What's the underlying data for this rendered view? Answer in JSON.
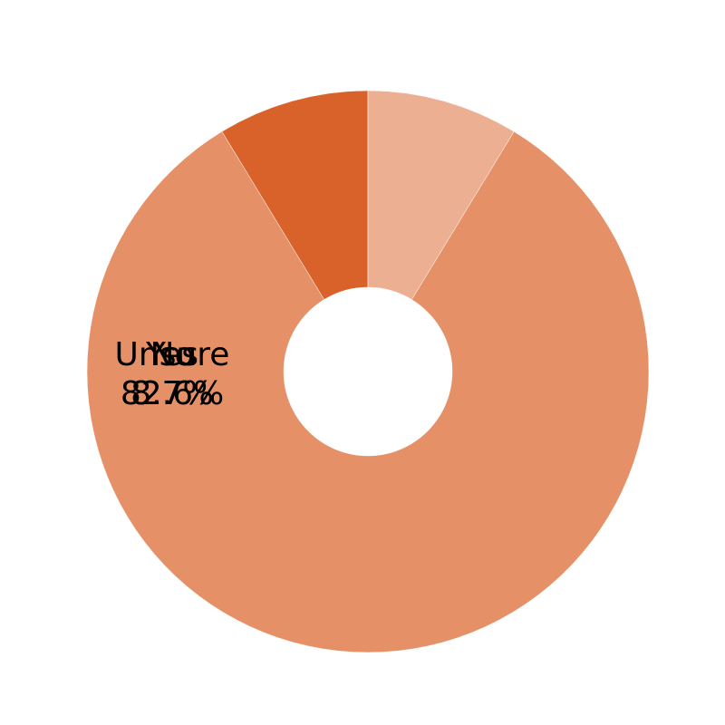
{
  "chart_data": {
    "type": "pie",
    "title": "",
    "hole": 0.3,
    "slices": [
      {
        "label": "Yes",
        "value": 8.7,
        "percent_text": "8.7%",
        "color": "#d9622b"
      },
      {
        "label": "No",
        "value": 82.6,
        "percent_text": "82.6%",
        "color": "#e59066"
      },
      {
        "label": "Unsure",
        "value": 8.7,
        "percent_text": "8.7%",
        "color": "#ecaf91"
      }
    ],
    "direction": "counterclockwise",
    "start": "top"
  }
}
